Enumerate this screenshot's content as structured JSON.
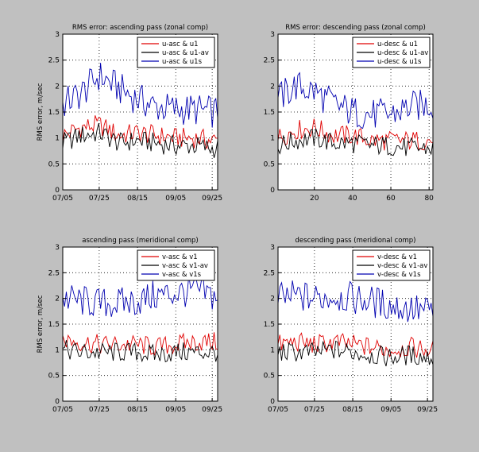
{
  "colors": {
    "figure_bg": "#c0c0c0",
    "axes_bg": "#ffffff",
    "grid": "#000000",
    "red": "#e00000",
    "black": "#000000",
    "blue": "#0000b0"
  },
  "chart_data": [
    {
      "type": "line",
      "title": "RMS error: ascending pass (zonal comp)",
      "ylabel": "RMS error, m/sec",
      "xlabel": "",
      "x_type": "date",
      "xlim": [
        "07/05",
        "09/28"
      ],
      "ylim": [
        0,
        3
      ],
      "xticks": [
        "07/05",
        "07/25",
        "08/15",
        "09/05",
        "09/25"
      ],
      "yticks": [
        "0",
        "0.5",
        "1",
        "1.5",
        "2",
        "2.5",
        "3"
      ],
      "grid": true,
      "legend_position": "top-right",
      "series": [
        {
          "name": "u-asc & u1",
          "color": "red",
          "x": [
            "07/05",
            "07/15",
            "07/25",
            "08/05",
            "08/15",
            "08/25",
            "09/05",
            "09/15",
            "09/25"
          ],
          "values": [
            1.05,
            1.2,
            1.25,
            1.05,
            1.1,
            1.05,
            1.0,
            1.0,
            0.95
          ]
        },
        {
          "name": "u-asc & u1-av",
          "color": "black",
          "x": [
            "07/05",
            "07/15",
            "07/25",
            "08/05",
            "08/15",
            "08/25",
            "09/05",
            "09/15",
            "09/25"
          ],
          "values": [
            0.9,
            1.05,
            1.1,
            0.9,
            0.95,
            0.9,
            0.85,
            0.85,
            0.8
          ]
        },
        {
          "name": "u-asc & u1s",
          "color": "blue",
          "x": [
            "07/05",
            "07/15",
            "07/25",
            "08/05",
            "08/15",
            "08/25",
            "09/05",
            "09/15",
            "09/25"
          ],
          "values": [
            1.65,
            1.85,
            2.2,
            1.95,
            1.75,
            1.6,
            1.55,
            1.55,
            1.5
          ]
        }
      ]
    },
    {
      "type": "line",
      "title": "RMS error: descending pass (zonal comp)",
      "ylabel": "",
      "xlabel": "",
      "x_type": "numeric",
      "xlim": [
        1,
        82
      ],
      "ylim": [
        0,
        3
      ],
      "xticks": [
        "20",
        "40",
        "60",
        "80"
      ],
      "yticks": [
        "0",
        "0.5",
        "1",
        "1.5",
        "2",
        "2.5",
        "3"
      ],
      "grid": true,
      "legend_position": "top-right",
      "series": [
        {
          "name": "u-desc & u1",
          "color": "red",
          "x": [
            1,
            10,
            20,
            30,
            40,
            50,
            60,
            70,
            82
          ],
          "values": [
            1.0,
            1.15,
            1.2,
            1.05,
            1.05,
            0.95,
            0.95,
            0.95,
            0.95
          ]
        },
        {
          "name": "u-desc & u1-av",
          "color": "black",
          "x": [
            1,
            10,
            20,
            30,
            40,
            50,
            60,
            70,
            82
          ],
          "values": [
            0.85,
            0.95,
            1.0,
            0.9,
            0.9,
            0.85,
            0.85,
            0.8,
            0.8
          ]
        },
        {
          "name": "u-desc & u1s",
          "color": "blue",
          "x": [
            1,
            10,
            20,
            30,
            40,
            50,
            60,
            70,
            82
          ],
          "values": [
            1.75,
            2.0,
            1.9,
            1.65,
            1.5,
            1.45,
            1.45,
            1.6,
            1.65
          ]
        }
      ]
    },
    {
      "type": "line",
      "title": "ascending pass (meridional comp)",
      "ylabel": "RMS error, m/sec",
      "xlabel": "",
      "x_type": "date",
      "xlim": [
        "07/05",
        "09/28"
      ],
      "ylim": [
        0,
        3
      ],
      "xticks": [
        "07/05",
        "07/25",
        "08/15",
        "09/05",
        "09/25"
      ],
      "yticks": [
        "0",
        "0.5",
        "1",
        "1.5",
        "2",
        "2.5",
        "3"
      ],
      "grid": true,
      "legend_position": "top-right",
      "series": [
        {
          "name": "v-asc & v1",
          "color": "red",
          "x": [
            "07/05",
            "07/15",
            "07/25",
            "08/05",
            "08/15",
            "08/25",
            "09/05",
            "09/15",
            "09/25"
          ],
          "values": [
            1.2,
            1.15,
            1.1,
            1.1,
            1.1,
            1.05,
            1.1,
            1.15,
            1.15
          ]
        },
        {
          "name": "v-asc & v1-av",
          "color": "black",
          "x": [
            "07/05",
            "07/15",
            "07/25",
            "08/05",
            "08/15",
            "08/25",
            "09/05",
            "09/15",
            "09/25"
          ],
          "values": [
            1.0,
            0.95,
            0.95,
            0.95,
            0.95,
            0.9,
            0.95,
            0.95,
            0.95
          ]
        },
        {
          "name": "v-asc & v1s",
          "color": "blue",
          "x": [
            "07/05",
            "07/15",
            "07/25",
            "08/05",
            "08/15",
            "08/25",
            "09/05",
            "09/15",
            "09/25"
          ],
          "values": [
            2.0,
            1.95,
            1.9,
            1.9,
            1.95,
            2.05,
            2.1,
            2.15,
            2.05
          ]
        }
      ]
    },
    {
      "type": "line",
      "title": "descending pass (meridional comp)",
      "ylabel": "",
      "xlabel": "",
      "x_type": "date",
      "xlim": [
        "07/05",
        "09/28"
      ],
      "ylim": [
        0,
        3
      ],
      "xticks": [
        "07/05",
        "07/25",
        "08/15",
        "09/05",
        "09/25"
      ],
      "yticks": [
        "0",
        "0.5",
        "1",
        "1.5",
        "2",
        "2.5",
        "3"
      ],
      "grid": true,
      "legend_position": "top-right",
      "series": [
        {
          "name": "v-desc & v1",
          "color": "red",
          "x": [
            "07/05",
            "07/15",
            "07/25",
            "08/05",
            "08/15",
            "08/25",
            "09/05",
            "09/15",
            "09/25"
          ],
          "values": [
            1.1,
            1.15,
            1.1,
            1.15,
            1.1,
            1.05,
            1.0,
            1.05,
            1.0
          ]
        },
        {
          "name": "v-desc & v1-av",
          "color": "black",
          "x": [
            "07/05",
            "07/15",
            "07/25",
            "08/05",
            "08/15",
            "08/25",
            "09/05",
            "09/15",
            "09/25"
          ],
          "values": [
            0.95,
            0.95,
            0.95,
            1.0,
            0.95,
            0.9,
            0.85,
            0.9,
            0.85
          ]
        },
        {
          "name": "v-desc & v1s",
          "color": "blue",
          "x": [
            "07/05",
            "07/15",
            "07/25",
            "08/05",
            "08/15",
            "08/25",
            "09/05",
            "09/15",
            "09/25"
          ],
          "values": [
            2.0,
            2.05,
            2.0,
            2.05,
            2.0,
            1.95,
            1.85,
            1.8,
            1.75
          ]
        }
      ]
    }
  ]
}
